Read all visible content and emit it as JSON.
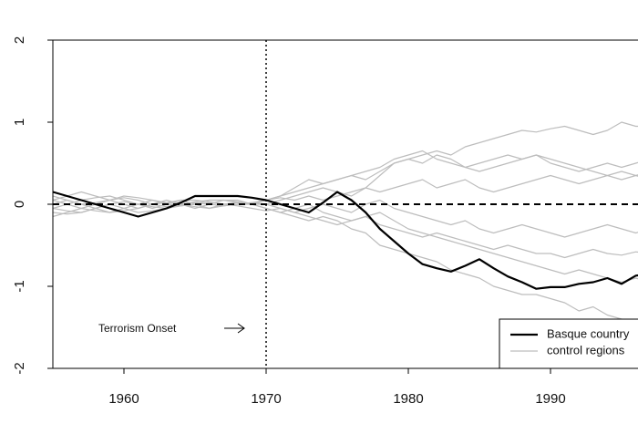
{
  "chart_data": {
    "type": "line",
    "annotation": "Terrorism Onset",
    "x": [
      1955,
      1956,
      1957,
      1958,
      1959,
      1960,
      1961,
      1962,
      1963,
      1964,
      1965,
      1966,
      1967,
      1968,
      1969,
      1970,
      1971,
      1972,
      1973,
      1974,
      1975,
      1976,
      1977,
      1978,
      1979,
      1980,
      1981,
      1982,
      1983,
      1984,
      1985,
      1986,
      1987,
      1988,
      1989,
      1990,
      1991,
      1992,
      1993,
      1994,
      1995,
      1996,
      1997
    ],
    "series": [
      {
        "name": "Basque country",
        "color": "#000000",
        "values": [
          0.15,
          0.1,
          0.05,
          0,
          -0.05,
          -0.1,
          -0.15,
          -0.1,
          -0.05,
          0.02,
          0.1,
          0.1,
          0.1,
          0.1,
          0.08,
          0.05,
          0,
          -0.05,
          -0.1,
          0.02,
          0.15,
          0.05,
          -0.1,
          -0.3,
          -0.45,
          -0.6,
          -0.73,
          -0.78,
          -0.82,
          -0.75,
          -0.67,
          -0.78,
          -0.88,
          -0.95,
          -1.03,
          -1.01,
          -1.01,
          -0.97,
          -0.95,
          -0.9,
          -0.97,
          -0.87,
          -0.85
        ]
      }
    ],
    "control_series": {
      "name": "control regions",
      "color": "#bdbdbd",
      "values": [
        [
          -0.05,
          0,
          0.05,
          0.08,
          0.1,
          0.05,
          0,
          -0.05,
          0,
          0.05,
          0.05,
          0.03,
          0,
          0,
          0.02,
          0.05,
          0.1,
          0.15,
          0.2,
          0.25,
          0.3,
          0.35,
          0.3,
          0.4,
          0.5,
          0.55,
          0.6,
          0.65,
          0.6,
          0.7,
          0.75,
          0.8,
          0.85,
          0.9,
          0.88,
          0.92,
          0.95,
          0.9,
          0.85,
          0.9,
          1.0,
          0.95,
          0.95
        ],
        [
          0.05,
          0.1,
          0.15,
          0.1,
          0.05,
          0,
          -0.05,
          0,
          0.05,
          0,
          -0.05,
          0,
          0.05,
          0.05,
          0,
          0,
          0.05,
          0.1,
          0.15,
          0.2,
          0.15,
          0.1,
          0.2,
          0.35,
          0.5,
          0.55,
          0.5,
          0.6,
          0.55,
          0.45,
          0.5,
          0.55,
          0.6,
          0.55,
          0.6,
          0.5,
          0.45,
          0.4,
          0.45,
          0.5,
          0.45,
          0.5,
          0.55
        ],
        [
          -0.1,
          -0.12,
          -0.1,
          -0.05,
          0,
          -0.05,
          -0.1,
          -0.08,
          -0.05,
          0,
          0.02,
          0,
          -0.02,
          0,
          0,
          -0.05,
          -0.1,
          -0.15,
          -0.2,
          -0.15,
          -0.2,
          -0.3,
          -0.35,
          -0.5,
          -0.55,
          -0.6,
          -0.65,
          -0.7,
          -0.8,
          -0.85,
          -0.9,
          -1.0,
          -1.05,
          -1.1,
          -1.1,
          -1.15,
          -1.2,
          -1.3,
          -1.25,
          -1.35,
          -1.4,
          -1.45,
          -1.5
        ],
        [
          0,
          0.05,
          0,
          -0.05,
          -0.1,
          -0.08,
          -0.05,
          0,
          0.02,
          0.05,
          0,
          -0.05,
          0,
          0.02,
          0,
          -0.05,
          -0.1,
          -0.05,
          0,
          -0.1,
          -0.15,
          -0.2,
          -0.15,
          -0.25,
          -0.3,
          -0.35,
          -0.4,
          -0.35,
          -0.4,
          -0.45,
          -0.5,
          -0.55,
          -0.5,
          -0.55,
          -0.6,
          -0.6,
          -0.65,
          -0.6,
          -0.55,
          -0.6,
          -0.62,
          -0.58,
          -0.6
        ],
        [
          0.1,
          0.05,
          0,
          0.02,
          0.05,
          0.1,
          0.08,
          0.05,
          0,
          -0.02,
          0,
          0.05,
          0.05,
          0.02,
          0,
          0.05,
          0.08,
          0.05,
          0.1,
          0.05,
          0.1,
          0.15,
          0.2,
          0.15,
          0.2,
          0.25,
          0.3,
          0.2,
          0.25,
          0.3,
          0.2,
          0.15,
          0.2,
          0.25,
          0.3,
          0.35,
          0.3,
          0.25,
          0.3,
          0.35,
          0.4,
          0.35,
          0.3
        ],
        [
          -0.15,
          -0.1,
          -0.05,
          -0.08,
          -0.1,
          -0.05,
          0,
          0.05,
          0.02,
          0,
          -0.03,
          -0.05,
          -0.02,
          0,
          0.02,
          0,
          -0.05,
          -0.1,
          -0.05,
          0,
          -0.05,
          -0.1,
          0,
          0.05,
          -0.05,
          -0.1,
          -0.15,
          -0.2,
          -0.25,
          -0.2,
          -0.3,
          -0.35,
          -0.3,
          -0.25,
          -0.3,
          -0.35,
          -0.4,
          -0.35,
          -0.3,
          -0.25,
          -0.3,
          -0.35,
          -0.3
        ],
        [
          0.05,
          0,
          -0.05,
          0,
          0.05,
          0.08,
          0.05,
          0,
          -0.03,
          0,
          0.03,
          0.05,
          0.05,
          0.03,
          0,
          0.05,
          0.1,
          0.2,
          0.3,
          0.25,
          0.3,
          0.35,
          0.4,
          0.45,
          0.55,
          0.6,
          0.65,
          0.55,
          0.5,
          0.45,
          0.4,
          0.45,
          0.5,
          0.55,
          0.6,
          0.55,
          0.5,
          0.45,
          0.4,
          0.35,
          0.3,
          0.35,
          0.4
        ],
        [
          -0.05,
          -0.08,
          -0.1,
          -0.05,
          0,
          0.03,
          0,
          -0.03,
          -0.05,
          -0.02,
          0,
          0.02,
          0,
          -0.02,
          -0.05,
          -0.08,
          -0.05,
          -0.1,
          -0.15,
          -0.2,
          -0.25,
          -0.2,
          -0.15,
          -0.1,
          -0.2,
          -0.3,
          -0.35,
          -0.4,
          -0.45,
          -0.5,
          -0.55,
          -0.6,
          -0.65,
          -0.7,
          -0.75,
          -0.8,
          -0.85,
          -0.8,
          -0.85,
          -0.9,
          -0.95,
          -0.9,
          -0.95
        ]
      ]
    },
    "hline": 0,
    "vline": 1970,
    "xlim": [
      1955,
      1997
    ],
    "xticks": [
      1960,
      1970,
      1980,
      1990
    ],
    "ylim": [
      -2,
      2
    ],
    "yticks": [
      -2,
      -1,
      0,
      1,
      2
    ],
    "legend": "bottom-right"
  }
}
